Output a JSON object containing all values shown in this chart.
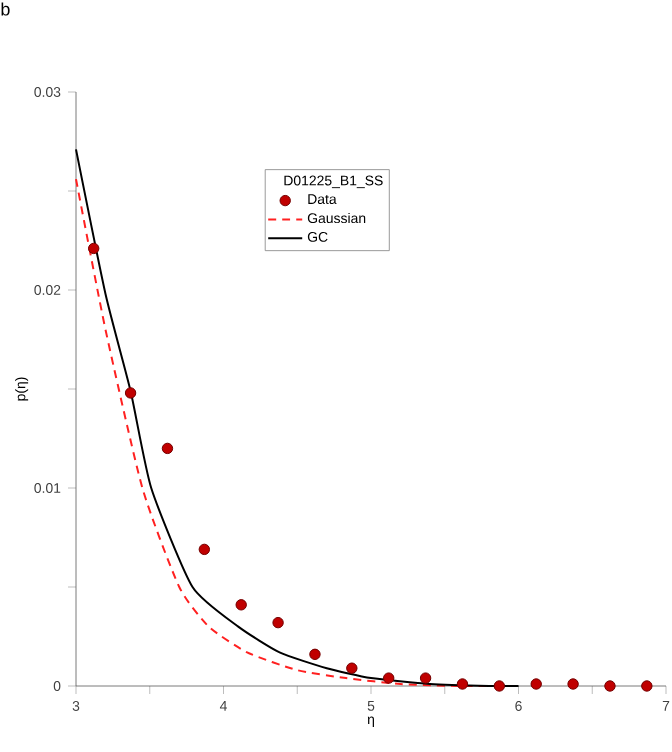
{
  "chart_data": {
    "type": "scatter",
    "xlabel": "η",
    "ylabel": "p(η)",
    "legend_title": "D01225_B1_SS",
    "annotations": [
      "b"
    ],
    "xlim": [
      3,
      7
    ],
    "ylim": [
      0,
      0.03
    ],
    "xticks": [
      3,
      {
        "value": 3.5,
        "label": null
      },
      4,
      {
        "value": 4.5,
        "label": null
      },
      5,
      {
        "value": 5.5,
        "label": null
      },
      6,
      {
        "value": 6.5,
        "label": null
      },
      7
    ],
    "yticks": [
      0,
      {
        "value": 0.005,
        "label": null
      },
      0.01,
      {
        "value": 0.015,
        "label": null
      },
      0.02,
      {
        "value": 0.025,
        "label": null
      },
      0.03
    ],
    "legend": "top",
    "grid": false,
    "series": [
      {
        "name": "Data",
        "marker": "circle",
        "color": "#c00000",
        "x": [
          3.12,
          3.37,
          3.62,
          3.87,
          4.12,
          4.37,
          4.62,
          4.87,
          5.12,
          5.37,
          5.62,
          5.87,
          6.12,
          6.37,
          6.62,
          6.87
        ],
        "values": [
          0.0221,
          0.0148,
          0.012,
          0.0069,
          0.0041,
          0.0032,
          0.0016,
          0.0009,
          0.0004,
          0.0004,
          0.0001,
          0,
          0.0001,
          0.0001,
          0,
          0
        ]
      },
      {
        "name": "Gaussian",
        "type": "line",
        "line_style": "dashed",
        "color": "#ff2020",
        "x": [
          3,
          3.2,
          3.45,
          3.7,
          3.9,
          4.16,
          4.5,
          4.83,
          5.2,
          5.6,
          6
        ],
        "values": [
          0.0256,
          0.018,
          0.01,
          0.005,
          0.003,
          0.0017,
          0.0008,
          0.0004,
          0.0001,
          0,
          0
        ]
      },
      {
        "name": "GC",
        "type": "line",
        "line_style": "solid",
        "color": "#000000",
        "x": [
          3,
          3.2,
          3.37,
          3.51,
          3.79,
          4.1,
          4.38,
          4.7,
          5,
          5.4,
          5.8,
          6
        ],
        "values": [
          0.0271,
          0.0198,
          0.0149,
          0.01,
          0.005,
          0.003,
          0.0017,
          0.0009,
          0.0004,
          0.0001,
          0,
          0
        ]
      }
    ]
  }
}
